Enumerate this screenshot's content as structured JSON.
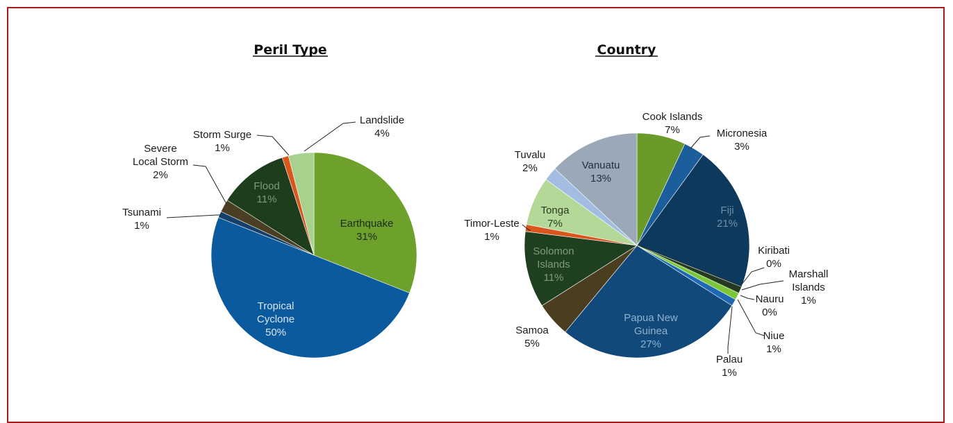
{
  "colors": {
    "frame": "#a61c1c",
    "leader": "#222222",
    "inside_label_light": "#d9e6f3",
    "inside_label_dark": "#1b2b1b"
  },
  "chart_data": [
    {
      "type": "pie",
      "title": "Peril Type",
      "slices": [
        {
          "name": "Earthquake",
          "value": 31,
          "label": "31%",
          "color": "#6ea02c",
          "label_inside": true,
          "inside_text_color": "#1b2b1b"
        },
        {
          "name": "Tropical Cyclone",
          "display_lines": [
            "Tropical",
            "Cyclone"
          ],
          "value": 50,
          "label": "50%",
          "color": "#0c5a9e",
          "label_inside": true,
          "inside_text_color": "#d9e6f3"
        },
        {
          "name": "Tsunami",
          "value": 1,
          "label": "1%",
          "color": "#16406a",
          "label_inside": false
        },
        {
          "name": "Severe Local Storm",
          "display_lines": [
            "Severe",
            "Local Storm"
          ],
          "value": 2,
          "label": "2%",
          "color": "#4a3f22",
          "label_inside": false
        },
        {
          "name": "Flood",
          "value": 11,
          "label": "11%",
          "color": "#1d3d1d",
          "label_inside": true,
          "inside_text_color": "#7f9a7a"
        },
        {
          "name": "Storm Surge",
          "value": 1,
          "label": "1%",
          "color": "#d9561c",
          "label_inside": false
        },
        {
          "name": "Landslide",
          "value": 4,
          "label": "4%",
          "color": "#a9d18e",
          "label_inside": false
        }
      ]
    },
    {
      "type": "pie",
      "title": "Country",
      "slices": [
        {
          "name": "Cook Islands",
          "value": 7,
          "label": "7%",
          "color": "#6a9a2a",
          "label_inside": false
        },
        {
          "name": "Micronesia",
          "value": 3,
          "label": "3%",
          "color": "#1c5e9c",
          "label_inside": false
        },
        {
          "name": "Fiji",
          "value": 21,
          "label": "21%",
          "color": "#0d3a5c",
          "label_inside": true,
          "inside_text_color": "#6f8ea8"
        },
        {
          "name": "Kiribati",
          "value": 0,
          "label": "0%",
          "color": "#20301e",
          "label_inside": false
        },
        {
          "name": "Marshall Islands",
          "display_lines": [
            "Marshall",
            "Islands"
          ],
          "value": 1,
          "label": "1%",
          "color": "#243a22",
          "label_inside": false
        },
        {
          "name": "Nauru",
          "value": 0,
          "label": "0%",
          "color": "#5f8f2a",
          "label_inside": false
        },
        {
          "name": "Niue",
          "value": 1,
          "label": "1%",
          "color": "#7cc63a",
          "label_inside": false
        },
        {
          "name": "Palau",
          "value": 1,
          "label": "1%",
          "color": "#1e68b4",
          "label_inside": false
        },
        {
          "name": "Papua New Guinea",
          "display_lines": [
            "Papua New",
            "Guinea"
          ],
          "value": 27,
          "label": "27%",
          "color": "#114a7a",
          "label_inside": true,
          "inside_text_color": "#8fb0cf"
        },
        {
          "name": "Samoa",
          "value": 5,
          "label": "5%",
          "color": "#4b3e20",
          "label_inside": false
        },
        {
          "name": "Solomon Islands",
          "display_lines": [
            "Solomon",
            "Islands"
          ],
          "value": 11,
          "label": "11%",
          "color": "#1f4020",
          "label_inside": true,
          "inside_text_color": "#7e9c78"
        },
        {
          "name": "Timor-Leste",
          "value": 1,
          "label": "1%",
          "color": "#d9561c",
          "label_inside": false
        },
        {
          "name": "Tonga",
          "value": 7,
          "label": "7%",
          "color": "#b4d898",
          "label_inside": true,
          "inside_text_color": "#2c3a24"
        },
        {
          "name": "Tuvalu",
          "value": 2,
          "label": "2%",
          "color": "#a3bde2",
          "label_inside": false
        },
        {
          "name": "Vanuatu",
          "value": 13,
          "label": "13%",
          "color": "#9aa8b8",
          "label_inside": true,
          "inside_text_color": "#23303e"
        }
      ]
    }
  ]
}
